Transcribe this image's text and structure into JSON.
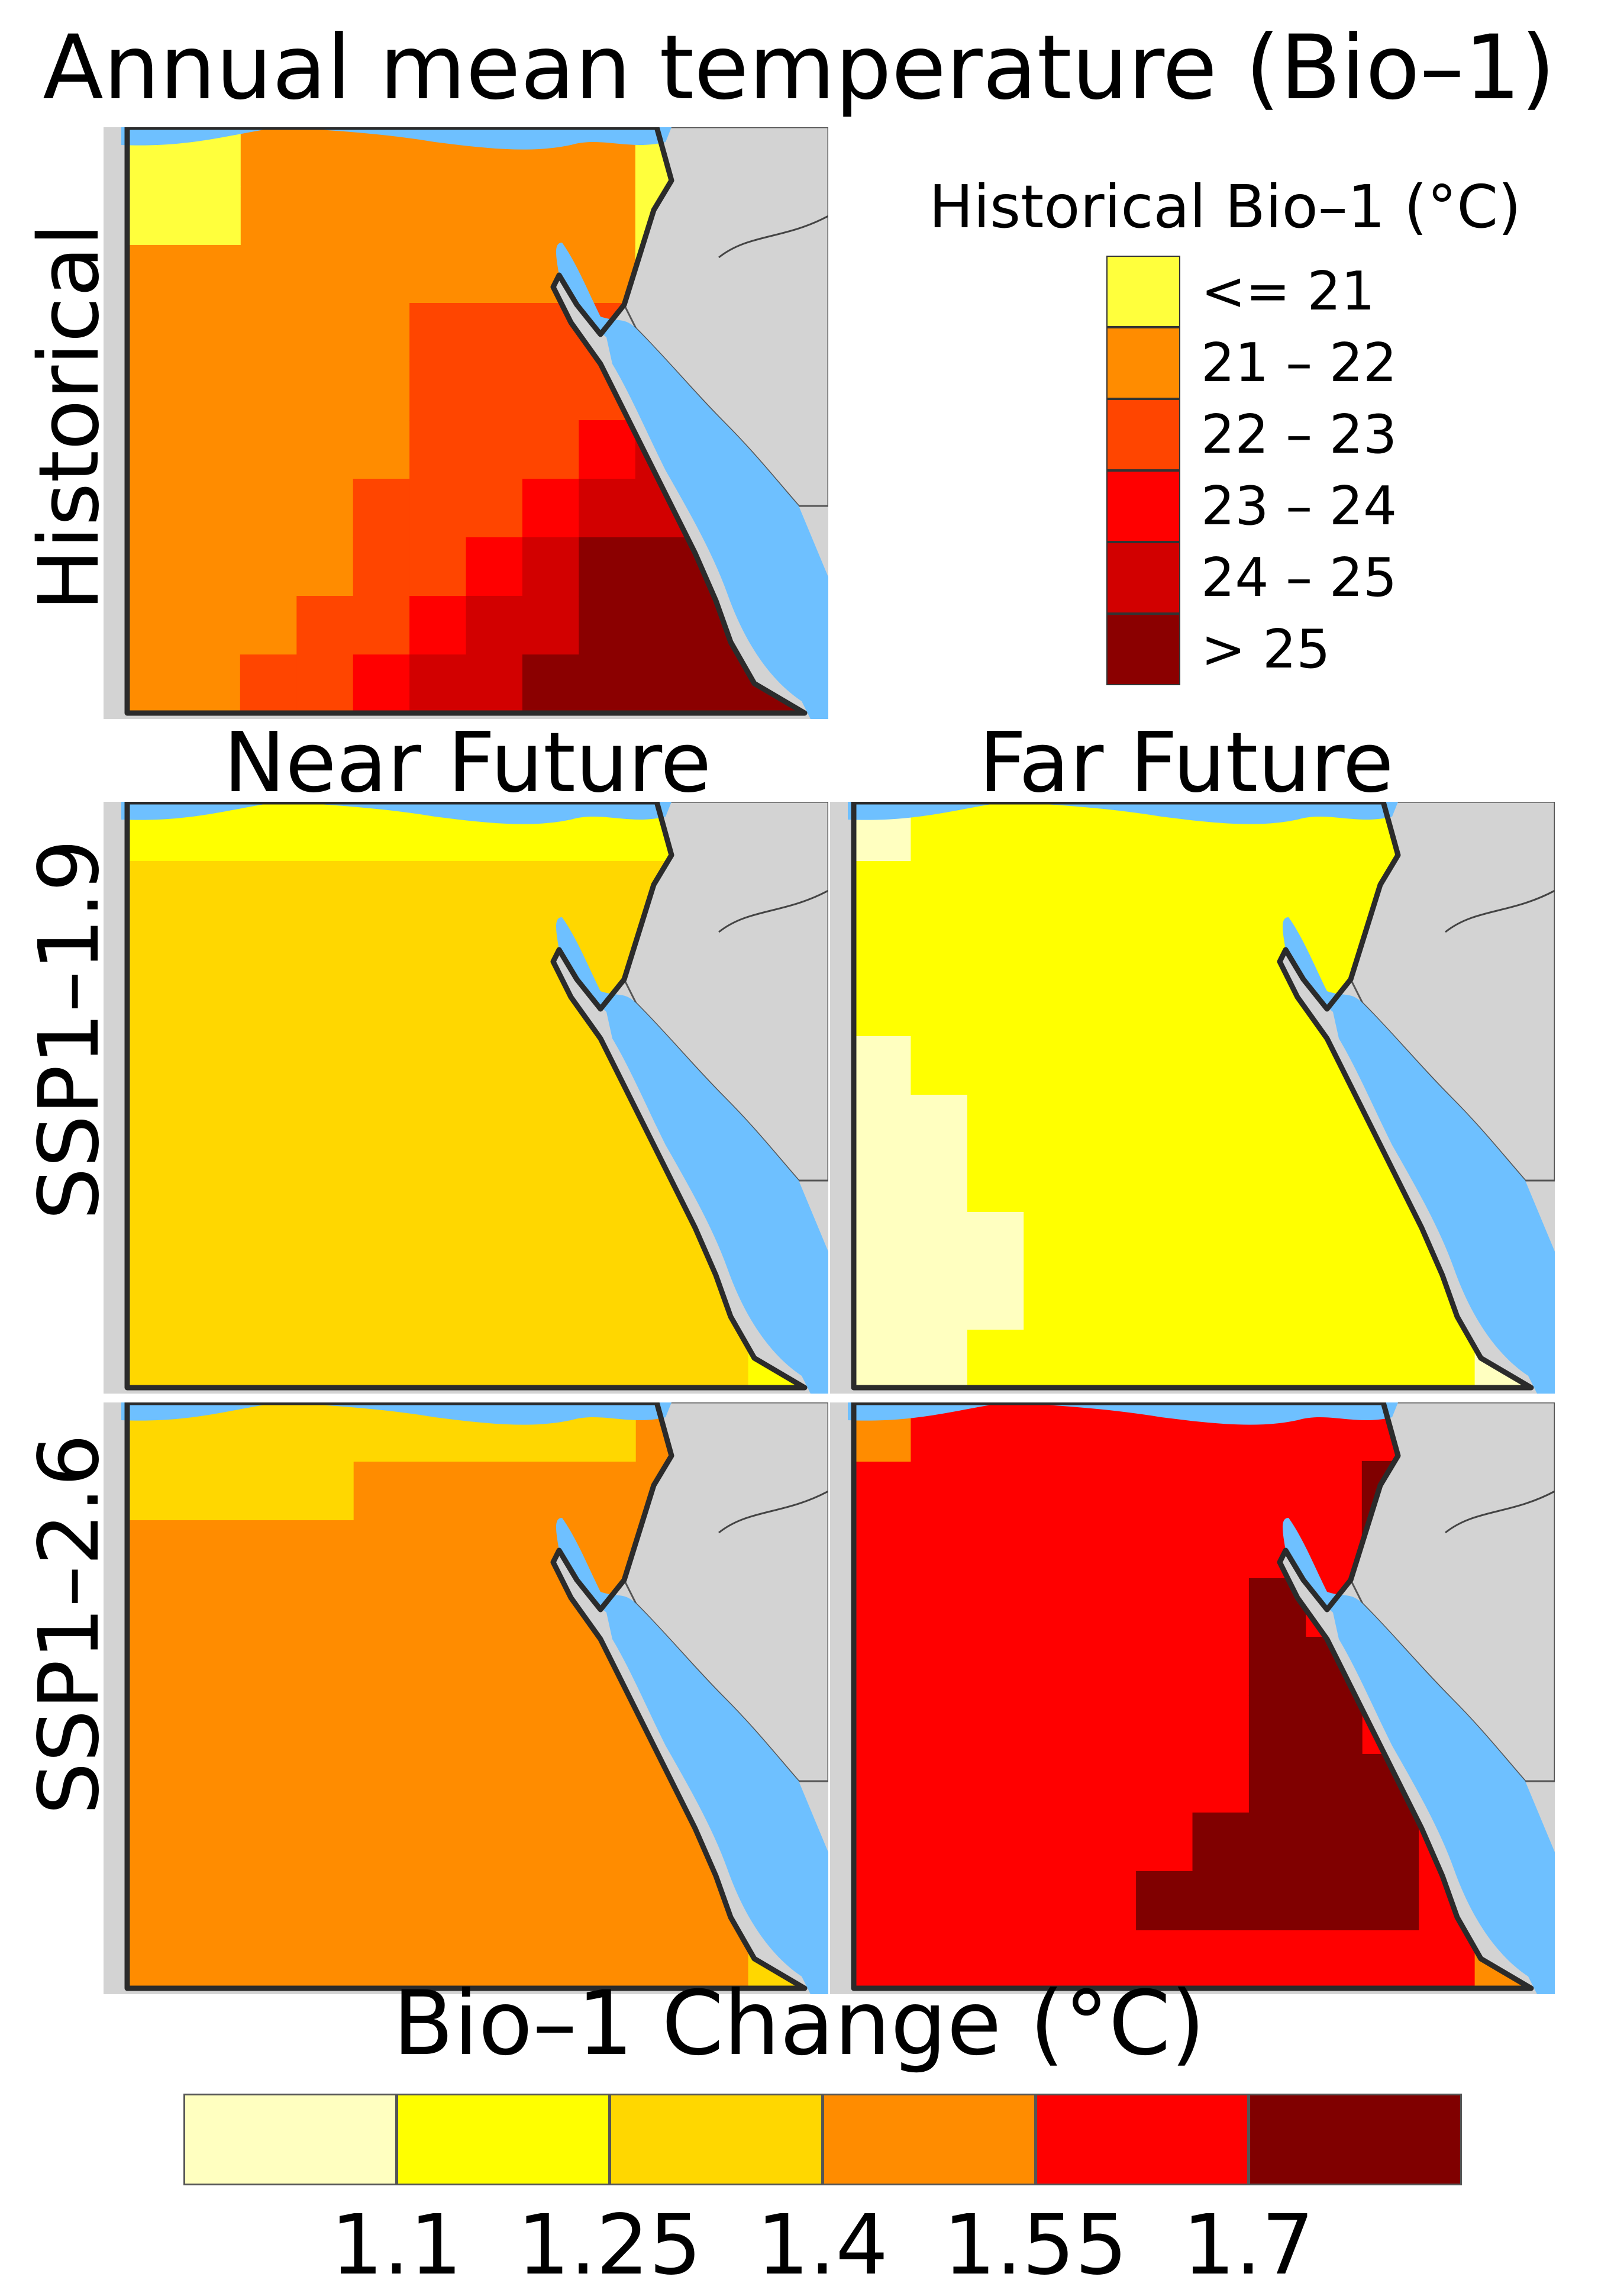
{
  "title": "Annual mean temperature (Bio–1)",
  "columns": [
    "Near Future",
    "Far Future"
  ],
  "rows": [
    "Historical",
    "SSP1–1.9",
    "SSP1–2.6"
  ],
  "colors": {
    "sea": "#6ec0ff",
    "land_outside": "#d3d3d3",
    "border": "#2b2b2b"
  },
  "historical_legend": {
    "title": "Historical Bio–1 (°C)",
    "items": [
      {
        "label": "<= 21",
        "color": "#ffff3c"
      },
      {
        "label": "21 – 22",
        "color": "#ff8c00"
      },
      {
        "label": "22 – 23",
        "color": "#ff4500"
      },
      {
        "label": "23 – 24",
        "color": "#ff0000"
      },
      {
        "label": "24 – 25",
        "color": "#d20000"
      },
      {
        "label": "> 25",
        "color": "#8b0000"
      }
    ]
  },
  "change_legend": {
    "title": "Bio–1 Change (°C)",
    "colors": [
      "#ffffc0",
      "#ffff00",
      "#ffd700",
      "#ff8c00",
      "#ff0000",
      "#800000"
    ],
    "ticks": [
      "1.1",
      "1.25",
      "1.4",
      "1.55",
      "1.7"
    ]
  },
  "panels": {
    "historical": {
      "base": "#ff8c00",
      "cells": [
        {
          "col": 0,
          "row": 0,
          "color": "#ffff3c"
        },
        {
          "col": 1,
          "row": 0,
          "color": "#ffff3c"
        },
        {
          "col": 0,
          "row": 1,
          "color": "#ffff3c"
        },
        {
          "col": 1,
          "row": 1,
          "color": "#ffff3c"
        },
        {
          "col": 9,
          "row": 0,
          "color": "#ffff3c"
        },
        {
          "col": 9,
          "row": 1,
          "color": "#ffff3c"
        },
        {
          "col": 9,
          "row": 2,
          "color": "#ffff3c"
        },
        {
          "col": 9,
          "row": 3,
          "color": "#ffff3c"
        },
        {
          "col": 5,
          "row": 3,
          "color": "#ff4500"
        },
        {
          "col": 6,
          "row": 3,
          "color": "#ff4500"
        },
        {
          "col": 7,
          "row": 3,
          "color": "#ff4500"
        },
        {
          "col": 8,
          "row": 3,
          "color": "#ff4500"
        },
        {
          "col": 9,
          "row": 3,
          "color": "#ff4500"
        },
        {
          "col": 10,
          "row": 3,
          "color": "#ff4500"
        },
        {
          "col": 5,
          "row": 4,
          "color": "#ff4500"
        },
        {
          "col": 6,
          "row": 4,
          "color": "#ff4500"
        },
        {
          "col": 7,
          "row": 4,
          "color": "#ff4500"
        },
        {
          "col": 8,
          "row": 4,
          "color": "#ff4500"
        },
        {
          "col": 9,
          "row": 4,
          "color": "#ff4500"
        },
        {
          "col": 5,
          "row": 5,
          "color": "#ff4500"
        },
        {
          "col": 6,
          "row": 5,
          "color": "#ff4500"
        },
        {
          "col": 7,
          "row": 5,
          "color": "#ff4500"
        },
        {
          "col": 4,
          "row": 6,
          "color": "#ff4500"
        },
        {
          "col": 5,
          "row": 6,
          "color": "#ff4500"
        },
        {
          "col": 6,
          "row": 6,
          "color": "#ff4500"
        },
        {
          "col": 4,
          "row": 7,
          "color": "#ff4500"
        },
        {
          "col": 5,
          "row": 7,
          "color": "#ff4500"
        },
        {
          "col": 3,
          "row": 8,
          "color": "#ff4500"
        },
        {
          "col": 4,
          "row": 8,
          "color": "#ff4500"
        },
        {
          "col": 2,
          "row": 9,
          "color": "#ff4500"
        },
        {
          "col": 3,
          "row": 9,
          "color": "#ff4500"
        },
        {
          "col": 9,
          "row": 4,
          "color": "#ff0000"
        },
        {
          "col": 8,
          "row": 5,
          "color": "#ff0000"
        },
        {
          "col": 7,
          "row": 6,
          "color": "#ff0000"
        },
        {
          "col": 6,
          "row": 7,
          "color": "#ff0000"
        },
        {
          "col": 5,
          "row": 8,
          "color": "#ff0000"
        },
        {
          "col": 4,
          "row": 9,
          "color": "#ff0000"
        },
        {
          "col": 9,
          "row": 5,
          "color": "#d20000"
        },
        {
          "col": 8,
          "row": 6,
          "color": "#d20000"
        },
        {
          "col": 9,
          "row": 6,
          "color": "#d20000"
        },
        {
          "col": 7,
          "row": 7,
          "color": "#d20000"
        },
        {
          "col": 6,
          "row": 8,
          "color": "#d20000"
        },
        {
          "col": 7,
          "row": 8,
          "color": "#d20000"
        },
        {
          "col": 5,
          "row": 9,
          "color": "#d20000"
        },
        {
          "col": 6,
          "row": 9,
          "color": "#d20000"
        },
        {
          "col": 10,
          "row": 6,
          "color": "#8b0000"
        },
        {
          "col": 11,
          "row": 6,
          "color": "#8b0000"
        },
        {
          "col": 8,
          "row": 7,
          "color": "#8b0000"
        },
        {
          "col": 9,
          "row": 7,
          "color": "#8b0000"
        },
        {
          "col": 10,
          "row": 7,
          "color": "#8b0000"
        },
        {
          "col": 11,
          "row": 7,
          "color": "#8b0000"
        },
        {
          "col": 8,
          "row": 8,
          "color": "#8b0000"
        },
        {
          "col": 9,
          "row": 8,
          "color": "#8b0000"
        },
        {
          "col": 10,
          "row": 8,
          "color": "#8b0000"
        },
        {
          "col": 11,
          "row": 8,
          "color": "#8b0000"
        },
        {
          "col": 7,
          "row": 9,
          "color": "#8b0000"
        },
        {
          "col": 8,
          "row": 9,
          "color": "#8b0000"
        },
        {
          "col": 9,
          "row": 9,
          "color": "#8b0000"
        },
        {
          "col": 10,
          "row": 9,
          "color": "#8b0000"
        },
        {
          "col": 11,
          "row": 9,
          "color": "#8b0000"
        }
      ]
    },
    "ssp119_near": {
      "base": "#ffd700",
      "cells": [
        {
          "col": 0,
          "row": 0,
          "color": "#ffff00"
        },
        {
          "col": 1,
          "row": 0,
          "color": "#ffff00"
        },
        {
          "col": 2,
          "row": 0,
          "color": "#ffff00"
        },
        {
          "col": 3,
          "row": 0,
          "color": "#ffff00"
        },
        {
          "col": 4,
          "row": 0,
          "color": "#ffff00"
        },
        {
          "col": 5,
          "row": 0,
          "color": "#ffff00"
        },
        {
          "col": 6,
          "row": 0,
          "color": "#ffff00"
        },
        {
          "col": 7,
          "row": 0,
          "color": "#ffff00"
        },
        {
          "col": 8,
          "row": 0,
          "color": "#ffff00"
        },
        {
          "col": 9,
          "row": 0,
          "color": "#ffff00"
        },
        {
          "col": 10,
          "row": 6,
          "color": "#ffff00"
        },
        {
          "col": 11,
          "row": 9,
          "color": "#ffff00"
        }
      ]
    },
    "ssp119_far": {
      "base": "#ffff00",
      "cells": [
        {
          "col": 0,
          "row": 0,
          "color": "#ffffc0"
        },
        {
          "col": 0,
          "row": 4,
          "color": "#ffffc0"
        },
        {
          "col": 0,
          "row": 5,
          "color": "#ffffc0"
        },
        {
          "col": 1,
          "row": 5,
          "color": "#ffffc0"
        },
        {
          "col": 0,
          "row": 6,
          "color": "#ffffc0"
        },
        {
          "col": 1,
          "row": 6,
          "color": "#ffffc0"
        },
        {
          "col": 0,
          "row": 7,
          "color": "#ffffc0"
        },
        {
          "col": 1,
          "row": 7,
          "color": "#ffffc0"
        },
        {
          "col": 2,
          "row": 7,
          "color": "#ffffc0"
        },
        {
          "col": 0,
          "row": 8,
          "color": "#ffffc0"
        },
        {
          "col": 1,
          "row": 8,
          "color": "#ffffc0"
        },
        {
          "col": 2,
          "row": 8,
          "color": "#ffffc0"
        },
        {
          "col": 0,
          "row": 9,
          "color": "#ffffc0"
        },
        {
          "col": 1,
          "row": 9,
          "color": "#ffffc0"
        },
        {
          "col": 11,
          "row": 9,
          "color": "#ffffc0"
        },
        {
          "col": 10,
          "row": 6,
          "color": "#ffffc0"
        }
      ]
    },
    "ssp126_near": {
      "base": "#ff8c00",
      "cells": [
        {
          "col": 0,
          "row": 0,
          "color": "#ffd700"
        },
        {
          "col": 1,
          "row": 0,
          "color": "#ffd700"
        },
        {
          "col": 2,
          "row": 0,
          "color": "#ffd700"
        },
        {
          "col": 3,
          "row": 0,
          "color": "#ffd700"
        },
        {
          "col": 4,
          "row": 0,
          "color": "#ffd700"
        },
        {
          "col": 5,
          "row": 0,
          "color": "#ffd700"
        },
        {
          "col": 6,
          "row": 0,
          "color": "#ffd700"
        },
        {
          "col": 7,
          "row": 0,
          "color": "#ffd700"
        },
        {
          "col": 8,
          "row": 0,
          "color": "#ffd700"
        },
        {
          "col": 0,
          "row": 1,
          "color": "#ffd700"
        },
        {
          "col": 1,
          "row": 1,
          "color": "#ffd700"
        },
        {
          "col": 2,
          "row": 1,
          "color": "#ffd700"
        },
        {
          "col": 3,
          "row": 1,
          "color": "#ffd700"
        },
        {
          "col": 11,
          "row": 9,
          "color": "#ffd700"
        },
        {
          "col": 10,
          "row": 6,
          "color": "#ffd700"
        }
      ]
    },
    "ssp126_far": {
      "base": "#ff0000",
      "cells": [
        {
          "col": 0,
          "row": 0,
          "color": "#ff8c00"
        },
        {
          "col": 9,
          "row": 1,
          "color": "#800000"
        },
        {
          "col": 9,
          "row": 2,
          "color": "#800000"
        },
        {
          "col": 7,
          "row": 3,
          "color": "#800000"
        },
        {
          "col": 7,
          "row": 4,
          "color": "#800000"
        },
        {
          "col": 8,
          "row": 4,
          "color": "#800000"
        },
        {
          "col": 7,
          "row": 5,
          "color": "#800000"
        },
        {
          "col": 8,
          "row": 5,
          "color": "#800000"
        },
        {
          "col": 7,
          "row": 6,
          "color": "#800000"
        },
        {
          "col": 8,
          "row": 6,
          "color": "#800000"
        },
        {
          "col": 9,
          "row": 6,
          "color": "#800000"
        },
        {
          "col": 6,
          "row": 7,
          "color": "#800000"
        },
        {
          "col": 7,
          "row": 7,
          "color": "#800000"
        },
        {
          "col": 8,
          "row": 7,
          "color": "#800000"
        },
        {
          "col": 9,
          "row": 7,
          "color": "#800000"
        },
        {
          "col": 5,
          "row": 8,
          "color": "#800000"
        },
        {
          "col": 6,
          "row": 8,
          "color": "#800000"
        },
        {
          "col": 7,
          "row": 8,
          "color": "#800000"
        },
        {
          "col": 8,
          "row": 8,
          "color": "#800000"
        },
        {
          "col": 9,
          "row": 8,
          "color": "#800000"
        },
        {
          "col": 11,
          "row": 8,
          "color": "#ff8c00"
        },
        {
          "col": 11,
          "row": 9,
          "color": "#ff8c00"
        }
      ]
    }
  }
}
